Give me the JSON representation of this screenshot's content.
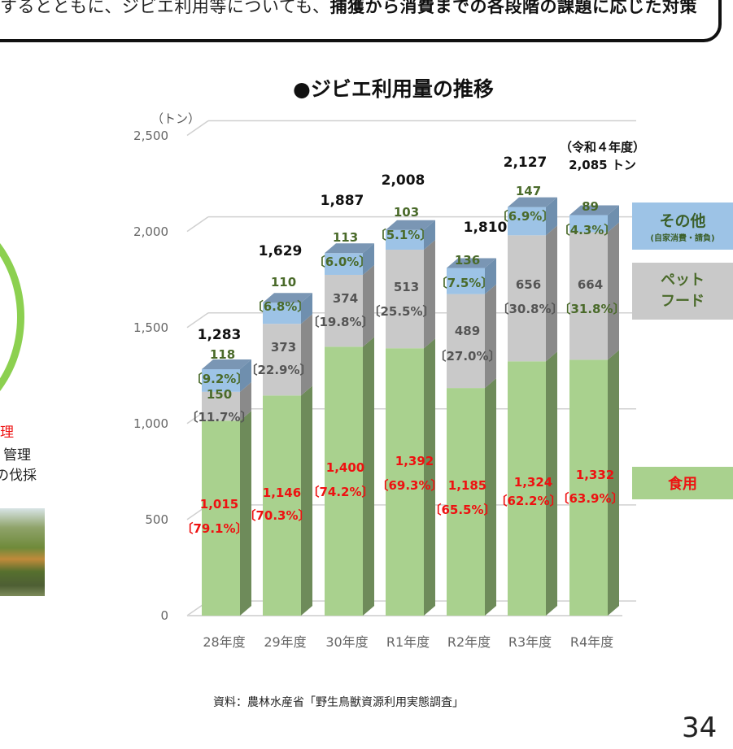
{
  "header": {
    "text_normal": "するとともに、ジビエ利用等についても、",
    "text_bold": "捕獲から消費までの各段階の課題に応じた対策"
  },
  "left_panel": {
    "text_red": "理",
    "text_line2": "管理",
    "text_line3": "の伐採"
  },
  "chart_title": "●ジビエ利用量の推移",
  "unit_label": "（トン）",
  "r4_note": {
    "line1": "（令和４年度）",
    "line2": "2,085 トン"
  },
  "legend": {
    "other_title": "その他",
    "other_sub": "(自家消費・請負)",
    "pet_line1": "ペット",
    "pet_line2": "フード",
    "food": "食用"
  },
  "source": "資料：農林水産省「野生鳥獣資源利用実態調査」",
  "page_number": "34",
  "colors": {
    "food": "#a9d18e",
    "food_side": "#6e8b5a",
    "pet": "#c9c9c9",
    "pet_side": "#8a8a8a",
    "other": "#9dc3e6",
    "other_top": "#7a96b4",
    "food_label": "#ee1111",
    "other_label": "#4a6a2a",
    "pet_label": "#555555"
  },
  "chart_data": {
    "type": "bar",
    "stacked": true,
    "title": "●ジビエ利用量の推移",
    "xlabel": "",
    "ylabel": "（トン）",
    "ylim": [
      0,
      2500
    ],
    "yticks": [
      "0",
      "500",
      "1,000",
      "1,500",
      "2,000",
      "2,500"
    ],
    "grid": true,
    "legend_position": "right",
    "categories": [
      "28年度",
      "29年度",
      "30年度",
      "R1年度",
      "R2年度",
      "R3年度",
      "R4年度"
    ],
    "totals": [
      "1,283",
      "1,629",
      "1,887",
      "2,008",
      "1,810",
      "2,127",
      ""
    ],
    "series": [
      {
        "name": "食用",
        "values": [
          1015,
          1146,
          1400,
          1392,
          1185,
          1324,
          1332
        ],
        "labels": [
          "1,015",
          "1,146",
          "1,400",
          "1,392",
          "1,185",
          "1,324",
          "1,332"
        ],
        "pct": [
          "〔79.1%〕",
          "〔70.3%〕",
          "〔74.2%〕",
          "〔69.3%〕",
          "〔65.5%〕",
          "〔62.2%〕",
          "〔63.9%〕"
        ]
      },
      {
        "name": "ペットフード",
        "values": [
          150,
          373,
          374,
          513,
          489,
          656,
          664
        ],
        "labels": [
          "150",
          "373",
          "374",
          "513",
          "489",
          "656",
          "664"
        ],
        "pct": [
          "〔11.7%〕",
          "〔22.9%〕",
          "〔19.8%〕",
          "〔25.5%〕",
          "〔27.0%〕",
          "〔30.8%〕",
          "〔31.8%〕"
        ]
      },
      {
        "name": "その他(自家消費・請負)",
        "values": [
          118,
          110,
          113,
          103,
          136,
          147,
          89
        ],
        "labels": [
          "118",
          "110",
          "113",
          "103",
          "136",
          "147",
          "89"
        ],
        "pct": [
          "〔9.2%〕",
          "〔6.8%〕",
          "〔6.0%〕",
          "〔5.1%〕",
          "〔7.5%〕",
          "〔6.9%〕",
          "〔4.3%〕"
        ]
      }
    ],
    "annotation": "（令和４年度）2,085 トン"
  }
}
